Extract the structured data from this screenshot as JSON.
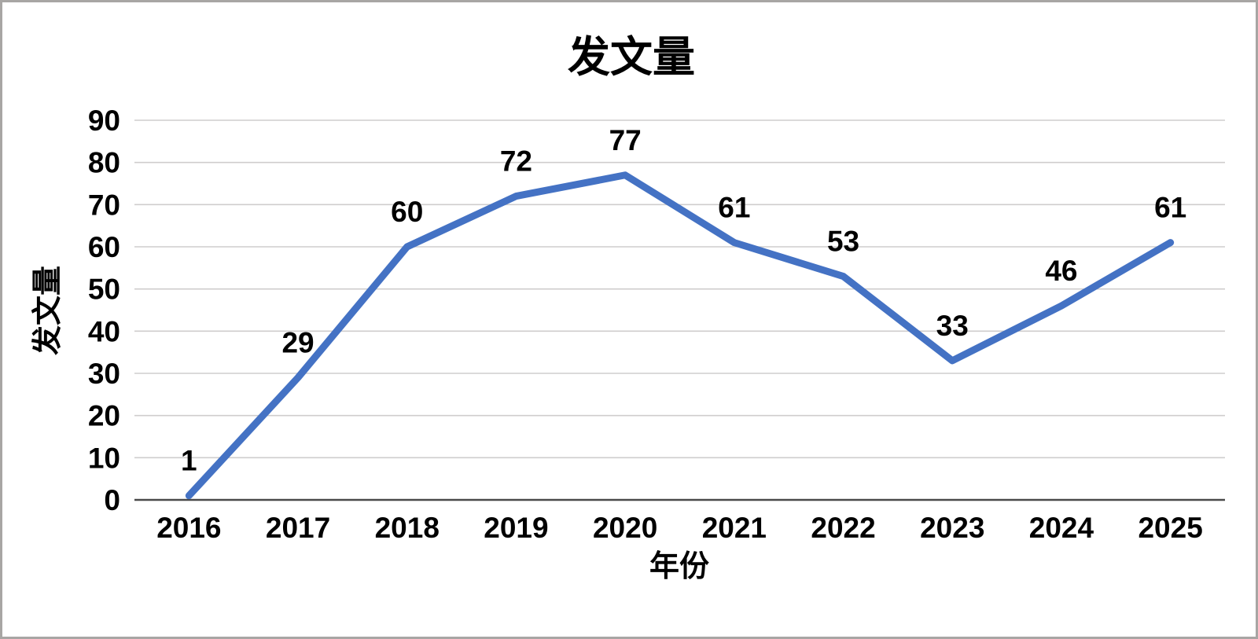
{
  "frame": {
    "background": "#ffffff",
    "border_color": "#a8a6a4"
  },
  "chart_data": {
    "type": "line",
    "title": "发文量",
    "xlabel": "年份",
    "ylabel": "发文量",
    "categories": [
      "2016",
      "2017",
      "2018",
      "2019",
      "2020",
      "2021",
      "2022",
      "2023",
      "2024",
      "2025"
    ],
    "series": [
      {
        "name": "发文量",
        "values": [
          1,
          29,
          60,
          72,
          77,
          61,
          53,
          33,
          46,
          61
        ]
      }
    ],
    "ylim": [
      0,
      90
    ],
    "ytick_step": 10,
    "ytick_labels": [
      "0",
      "10",
      "20",
      "30",
      "40",
      "50",
      "60",
      "70",
      "80",
      "90"
    ],
    "grid": "horizontal-only",
    "legend": "none",
    "data_labels": true,
    "line_color": "#4472c4",
    "gridline_color": "#cfcdcd",
    "axis_line_color": "#4a4a4a",
    "text_color": "#000000"
  }
}
